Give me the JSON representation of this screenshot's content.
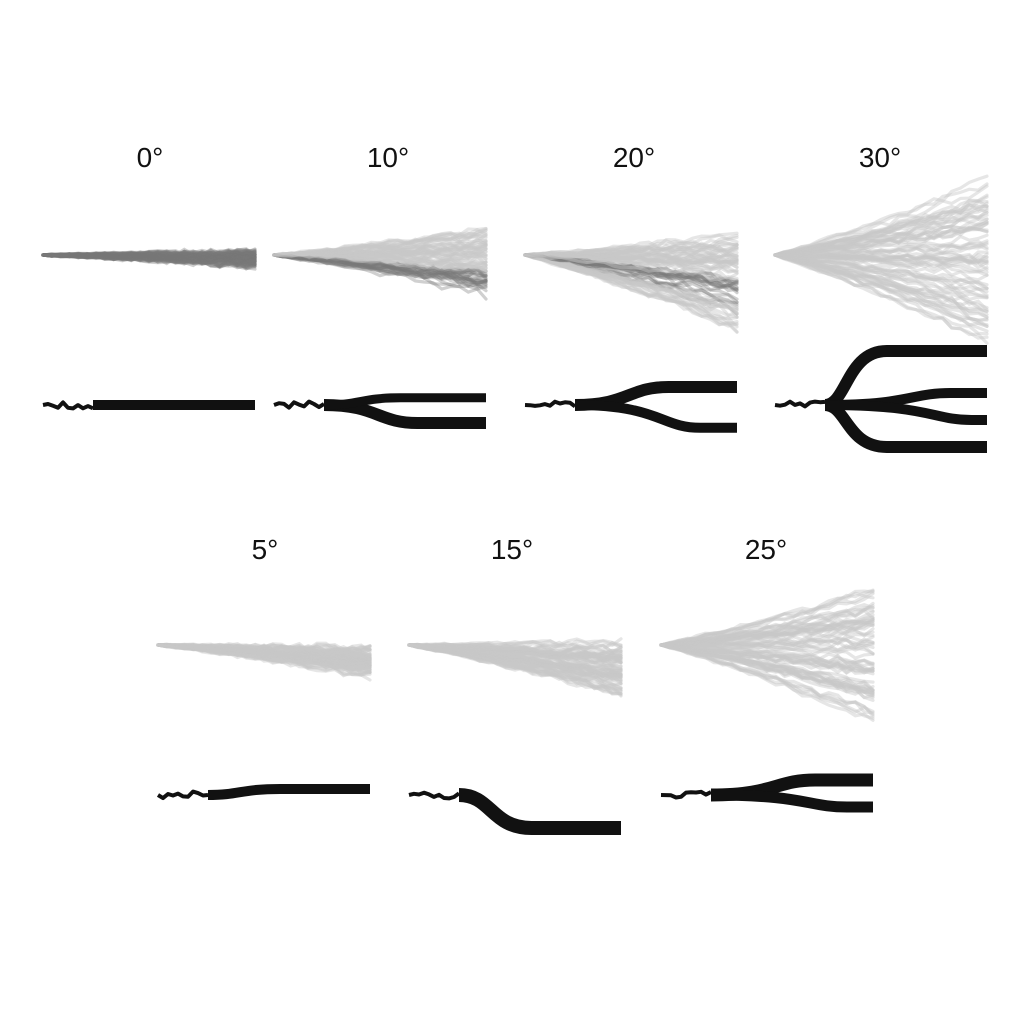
{
  "colors": {
    "ensemble": "#777777",
    "ensemble_light": "#c8c8c8",
    "prediction": "#111111",
    "background": "#ffffff"
  },
  "panels": [
    {
      "angle_label": "0°",
      "angle": 0,
      "pred_branches": 1
    },
    {
      "angle_label": "10°",
      "angle": 10,
      "pred_branches": 2
    },
    {
      "angle_label": "20°",
      "angle": 20,
      "pred_branches": 2
    },
    {
      "angle_label": "30°",
      "angle": 30,
      "pred_branches": 4
    },
    {
      "angle_label": "5°",
      "angle": 5,
      "pred_branches": 1
    },
    {
      "angle_label": "15°",
      "angle": 15,
      "pred_branches": 1
    },
    {
      "angle_label": "25°",
      "angle": 25,
      "pred_branches": 2
    }
  ]
}
